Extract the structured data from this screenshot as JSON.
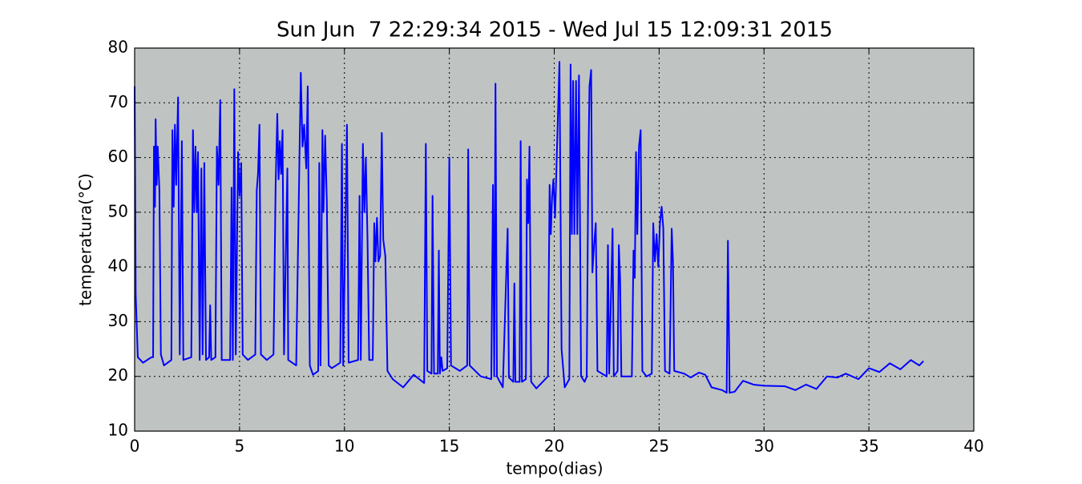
{
  "chart_data": {
    "type": "line",
    "title": "Sun Jun  7 22:29:34 2015 - Wed Jul 15 12:09:31 2015",
    "xlabel": "tempo(dias)",
    "ylabel": "temperatura(°C)",
    "xlim": [
      0,
      40
    ],
    "ylim": [
      10,
      80
    ],
    "xticks": [
      0,
      5,
      10,
      15,
      20,
      25,
      30,
      35,
      40
    ],
    "yticks": [
      10,
      20,
      30,
      40,
      50,
      60,
      70,
      80
    ],
    "grid": true,
    "background": "#bfc4c2",
    "x": [
      0,
      0.05,
      0.15,
      0.4,
      0.8,
      0.88,
      0.92,
      0.97,
      1.0,
      1.05,
      1.1,
      1.18,
      1.25,
      1.4,
      1.75,
      1.8,
      1.86,
      1.92,
      1.98,
      2.07,
      2.15,
      2.25,
      2.32,
      2.7,
      2.78,
      2.84,
      2.9,
      2.96,
      3.02,
      3.1,
      3.18,
      3.24,
      3.32,
      3.4,
      3.55,
      3.6,
      3.65,
      3.85,
      3.92,
      4.0,
      4.08,
      4.15,
      4.55,
      4.62,
      4.68,
      4.75,
      4.82,
      4.93,
      5.0,
      5.08,
      5.15,
      5.4,
      5.75,
      5.82,
      5.88,
      5.95,
      6.02,
      6.3,
      6.62,
      6.72,
      6.8,
      6.86,
      6.92,
      6.98,
      7.05,
      7.12,
      7.28,
      7.32,
      7.7,
      7.92,
      8.0,
      8.08,
      8.18,
      8.25,
      8.35,
      8.5,
      8.75,
      8.8,
      8.86,
      8.95,
      9.0,
      9.08,
      9.16,
      9.25,
      9.4,
      9.8,
      9.88,
      9.94,
      10.12,
      10.2,
      10.65,
      10.72,
      10.78,
      10.88,
      10.95,
      11.02,
      11.1,
      11.18,
      11.35,
      11.42,
      11.48,
      11.55,
      11.62,
      11.7,
      11.78,
      11.85,
      11.95,
      12.05,
      12.3,
      12.8,
      13.3,
      13.8,
      13.88,
      13.95,
      14.15,
      14.2,
      14.27,
      14.45,
      14.5,
      14.55,
      14.62,
      14.68,
      14.9,
      15.0,
      15.08,
      15.5,
      15.85,
      15.9,
      15.97,
      16.5,
      17.0,
      17.08,
      17.14,
      17.2,
      17.27,
      17.55,
      17.78,
      17.84,
      18.05,
      18.1,
      18.15,
      18.35,
      18.4,
      18.46,
      18.65,
      18.7,
      18.76,
      18.82,
      18.9,
      19.15,
      19.7,
      19.78,
      19.84,
      19.9,
      19.96,
      20.04,
      20.12,
      20.25,
      20.35,
      20.5,
      20.72,
      20.78,
      20.84,
      20.9,
      20.96,
      21.04,
      21.1,
      21.18,
      21.28,
      21.45,
      21.55,
      21.62,
      21.68,
      21.76,
      21.82,
      21.9,
      21.98,
      22.06,
      22.5,
      22.56,
      22.62,
      22.78,
      22.84,
      23.02,
      23.08,
      23.14,
      23.2,
      23.7,
      23.78,
      23.84,
      23.9,
      23.96,
      24.04,
      24.12,
      24.2,
      24.4,
      24.65,
      24.72,
      24.8,
      24.88,
      24.96,
      25.04,
      25.12,
      25.2,
      25.28,
      25.5,
      25.6,
      25.66,
      25.72,
      26.2,
      26.5,
      26.9,
      27.2,
      27.5,
      28.0,
      28.22,
      28.28,
      28.36,
      28.6,
      29.0,
      29.5,
      30.0,
      31.0,
      31.5,
      32.0,
      32.5,
      33.0,
      33.5,
      33.9,
      34.5,
      35.0,
      35.5,
      36.0,
      36.5,
      37.0,
      37.4,
      37.6
    ],
    "series": [
      {
        "color": "#0000ff",
        "values": [
          73,
          35,
          23.5,
          22.5,
          23.5,
          23.5,
          62,
          51,
          67,
          55,
          62,
          54,
          24,
          22,
          23,
          65,
          51,
          66,
          55,
          71,
          24,
          63,
          23,
          23.5,
          65,
          50,
          62,
          50,
          61,
          23,
          58,
          24,
          59,
          23,
          23.5,
          33,
          23,
          23.5,
          62,
          55,
          70.5,
          23,
          23,
          54.5,
          23,
          72.5,
          24,
          61,
          53,
          59,
          24,
          23,
          24,
          54,
          57,
          66,
          24,
          23,
          24,
          55,
          68,
          56,
          63,
          57,
          65,
          24,
          58,
          23,
          22,
          75.5,
          62,
          66,
          58,
          73,
          22,
          20.3,
          21,
          59,
          22,
          65,
          50,
          64,
          52,
          22,
          21.5,
          22.5,
          62.5,
          22,
          66,
          22.5,
          23,
          53,
          23,
          62.5,
          50,
          60,
          45,
          23,
          23,
          48,
          41,
          49,
          41,
          42,
          64.5,
          45,
          42,
          21,
          19.5,
          18,
          20.3,
          18.8,
          62.5,
          21,
          20.5,
          53,
          20.5,
          20.5,
          43,
          20.5,
          23.5,
          21,
          21.5,
          60,
          22,
          21,
          22,
          61.5,
          22,
          20,
          19.5,
          55,
          20,
          73.5,
          20,
          18,
          47,
          19.8,
          19,
          37,
          19,
          19,
          63,
          19,
          19.5,
          56,
          48,
          62,
          19,
          17.8,
          20,
          55,
          46,
          53,
          56,
          49,
          60,
          77.5,
          25,
          18,
          19.5,
          77,
          46,
          74,
          46,
          74,
          46,
          75,
          20,
          19,
          20,
          56,
          73,
          76,
          39,
          44,
          48,
          21,
          20,
          44,
          20.5,
          47,
          20,
          21,
          44,
          38,
          20,
          20,
          43,
          38,
          61,
          46,
          62,
          65,
          21,
          20,
          20.5,
          48,
          41,
          46,
          40,
          48,
          51,
          47,
          21,
          20.5,
          47,
          41,
          21,
          20.5,
          19.8,
          20.7,
          20.3,
          18,
          17.5,
          17,
          44.8,
          17,
          17.2,
          19.2,
          18.5,
          18.3,
          18.2,
          17.5,
          18.5,
          17.7,
          20,
          19.8,
          20.5,
          19.5,
          21.5,
          20.8,
          22.4,
          21.3,
          23,
          22,
          22.8
        ]
      }
    ]
  }
}
